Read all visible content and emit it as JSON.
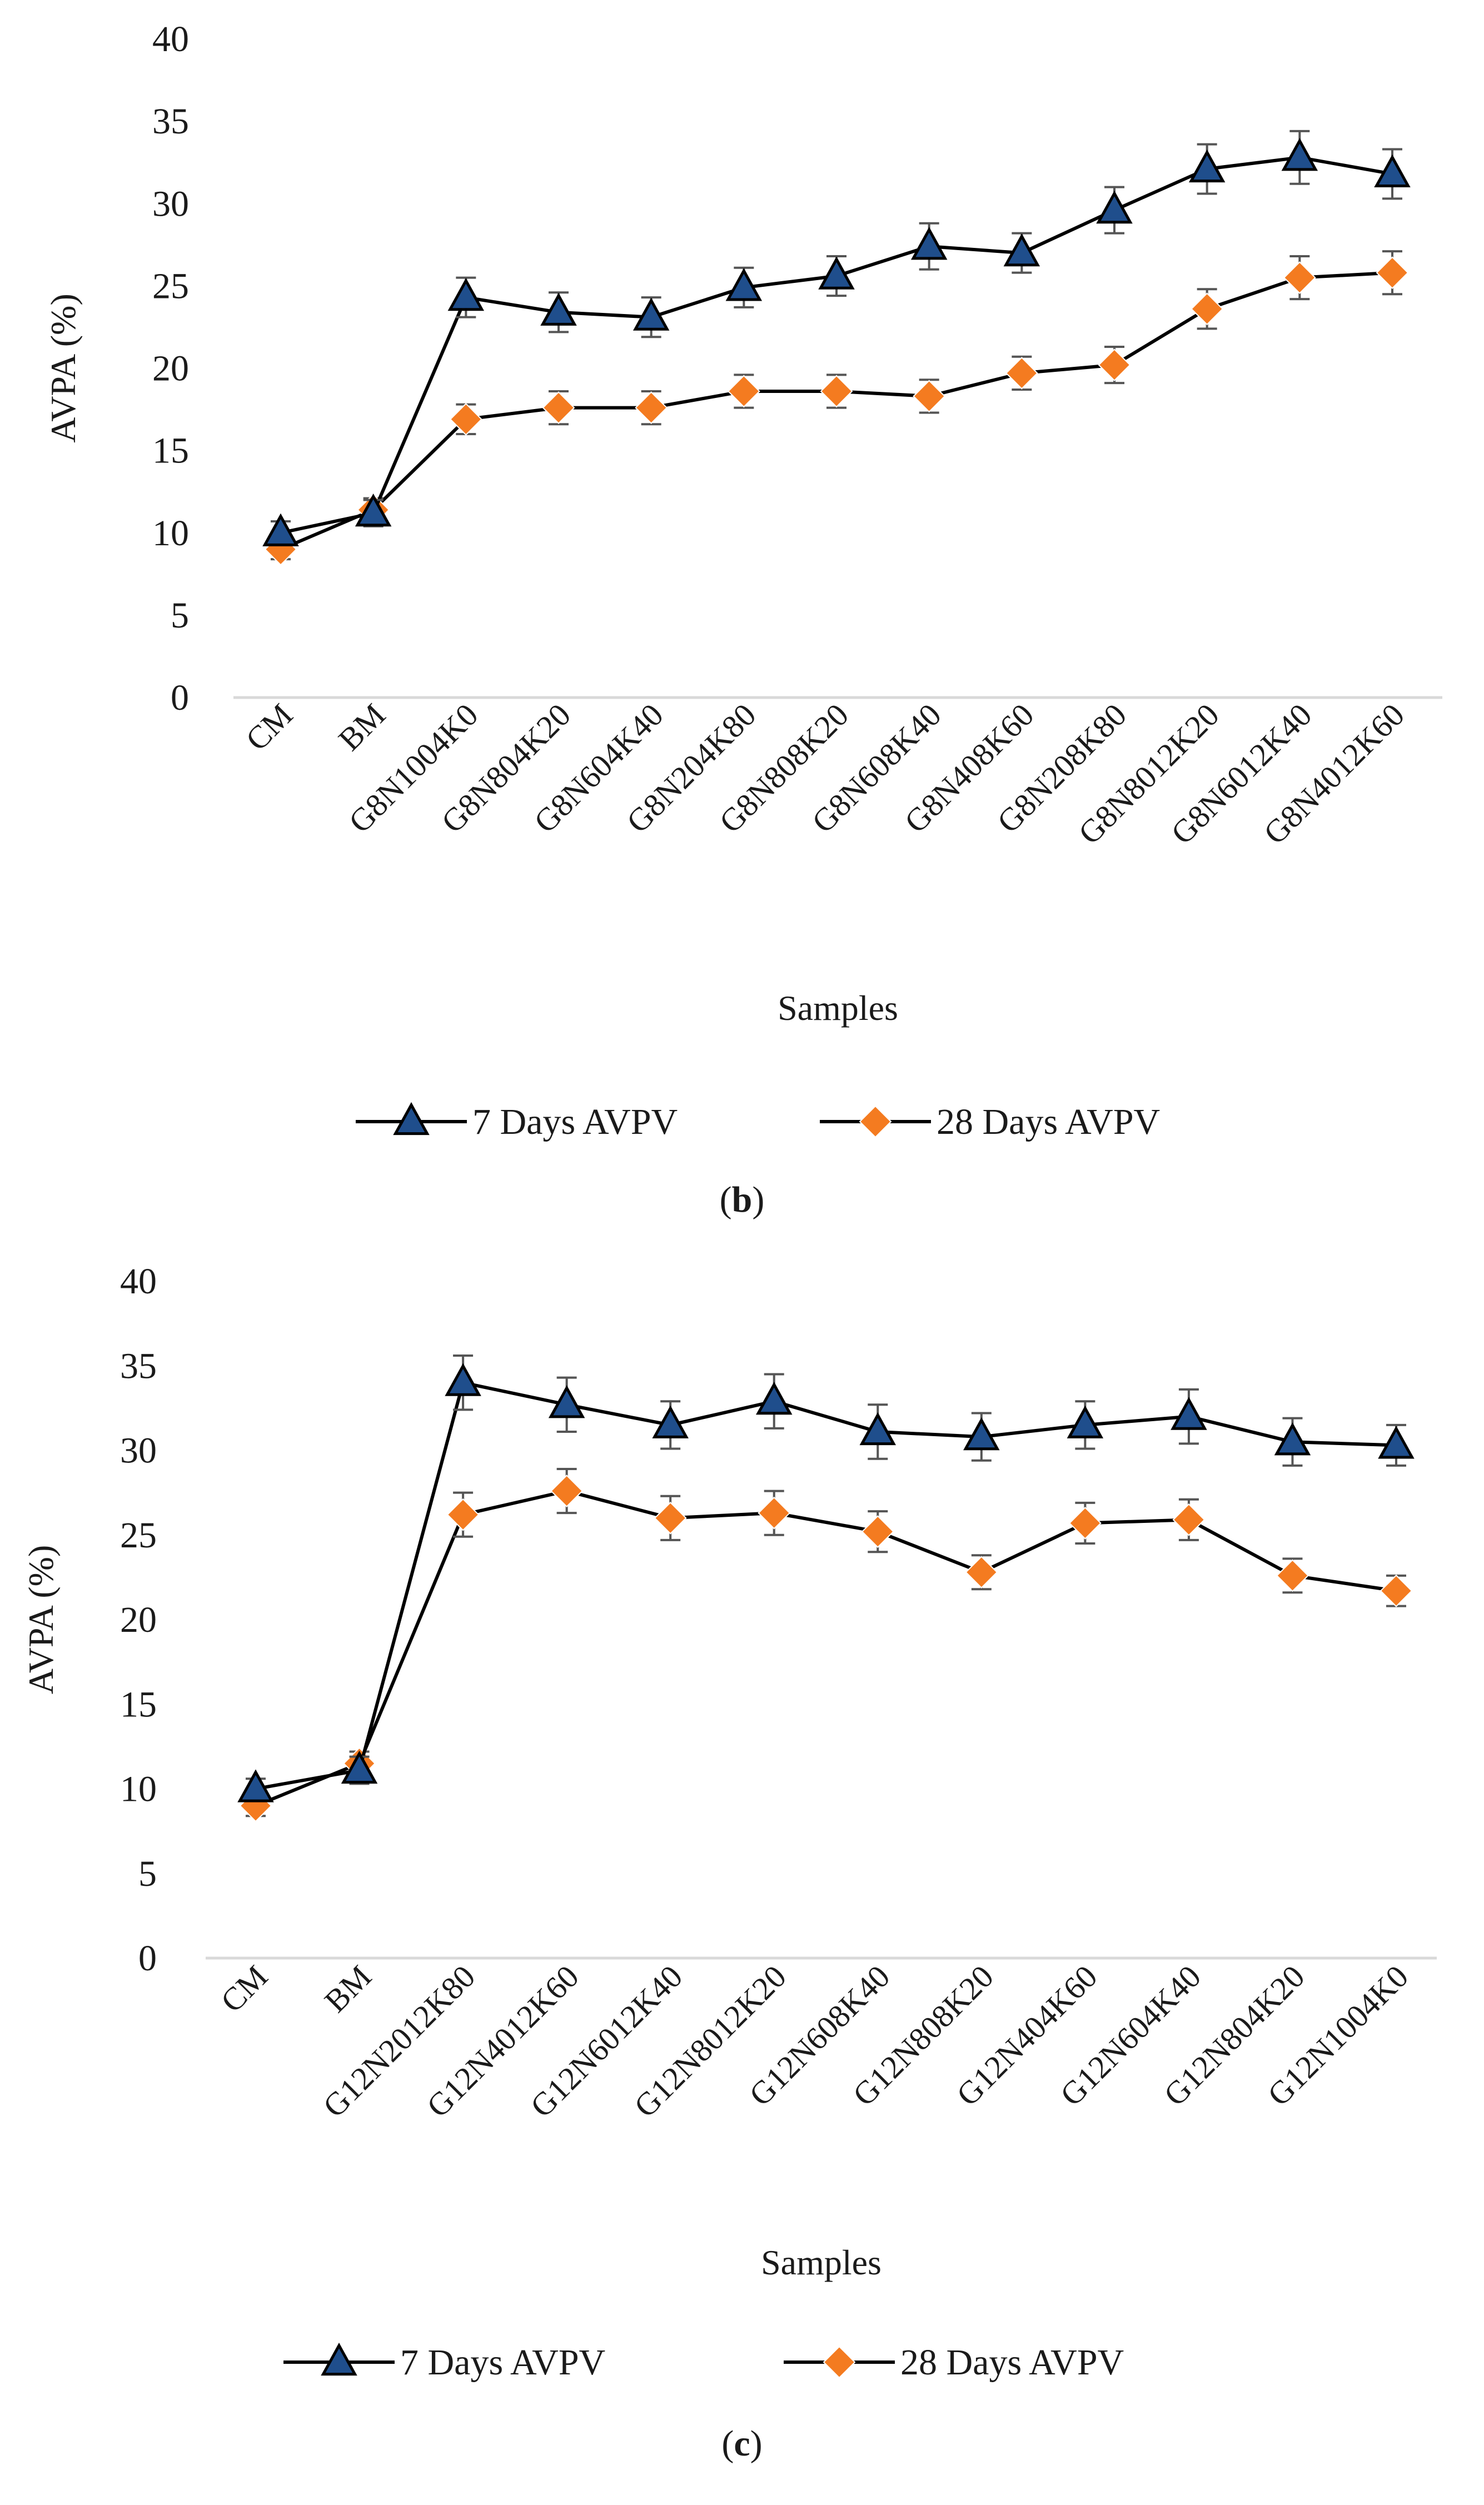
{
  "chart_data": [
    {
      "type": "line",
      "panel_label": "b",
      "xlabel": "Samples",
      "ylabel": "AVPA (%)",
      "ylim": [
        0,
        40
      ],
      "yticks": [
        0,
        5,
        10,
        15,
        20,
        25,
        30,
        35,
        40
      ],
      "grid": false,
      "legend_position": "bottom",
      "categories": [
        "CM",
        "BM",
        "G8N1004K0",
        "G8N804K20",
        "G8N604K40",
        "G8N204K80",
        "G8N808K20",
        "G8N608K40",
        "G8N408K60",
        "G8N208K80",
        "G8N8012K20",
        "G8N6012K40",
        "G8N4012K60"
      ],
      "series": [
        {
          "name": "7 Days AVPV",
          "marker": "triangle",
          "color": "#1f4e8c",
          "values": [
            10.0,
            11.2,
            24.3,
            23.4,
            23.1,
            24.9,
            25.6,
            27.4,
            27.0,
            29.6,
            32.1,
            32.8,
            31.8
          ],
          "error": [
            0.7,
            0.8,
            1.2,
            1.2,
            1.2,
            1.2,
            1.2,
            1.4,
            1.2,
            1.4,
            1.5,
            1.6,
            1.5
          ]
        },
        {
          "name": "28 Days AVPV",
          "marker": "diamond",
          "color": "#f47b20",
          "values": [
            9.0,
            11.4,
            16.9,
            17.6,
            17.6,
            18.6,
            18.6,
            18.3,
            19.7,
            20.2,
            23.6,
            25.5,
            25.8
          ],
          "error": [
            0.6,
            0.7,
            0.9,
            1.0,
            1.0,
            1.0,
            1.0,
            1.0,
            1.0,
            1.1,
            1.2,
            1.3,
            1.3
          ]
        }
      ]
    },
    {
      "type": "line",
      "panel_label": "c",
      "xlabel": "Samples",
      "ylabel": "AVPA (%)",
      "ylim": [
        0,
        40
      ],
      "yticks": [
        0,
        5,
        10,
        15,
        20,
        25,
        30,
        35,
        40
      ],
      "grid": false,
      "legend_position": "bottom",
      "categories": [
        "CM",
        "BM",
        "G12N2012K80",
        "G12N4012K60",
        "G12N6012K40",
        "G12N8012K20",
        "G12N608K40",
        "G12N808K20",
        "G12N404K60",
        "G12N604K40",
        "G12N804K20",
        "G12N1004K0"
      ],
      "series": [
        {
          "name": "7 Days AVPV",
          "marker": "triangle",
          "color": "#1f4e8c",
          "values": [
            10.0,
            11.1,
            34.0,
            32.7,
            31.5,
            32.9,
            31.1,
            30.8,
            31.5,
            32.0,
            30.5,
            30.3
          ],
          "error": [
            0.6,
            0.8,
            1.6,
            1.6,
            1.4,
            1.6,
            1.6,
            1.4,
            1.4,
            1.6,
            1.4,
            1.2
          ]
        },
        {
          "name": "28 Days AVPV",
          "marker": "diamond",
          "color": "#f47b20",
          "values": [
            9.0,
            11.5,
            26.2,
            27.6,
            26.0,
            26.3,
            25.2,
            22.8,
            25.7,
            25.9,
            22.6,
            21.7
          ],
          "error": [
            0.6,
            0.7,
            1.3,
            1.3,
            1.3,
            1.3,
            1.2,
            1.0,
            1.2,
            1.2,
            1.0,
            0.9
          ]
        }
      ]
    }
  ]
}
